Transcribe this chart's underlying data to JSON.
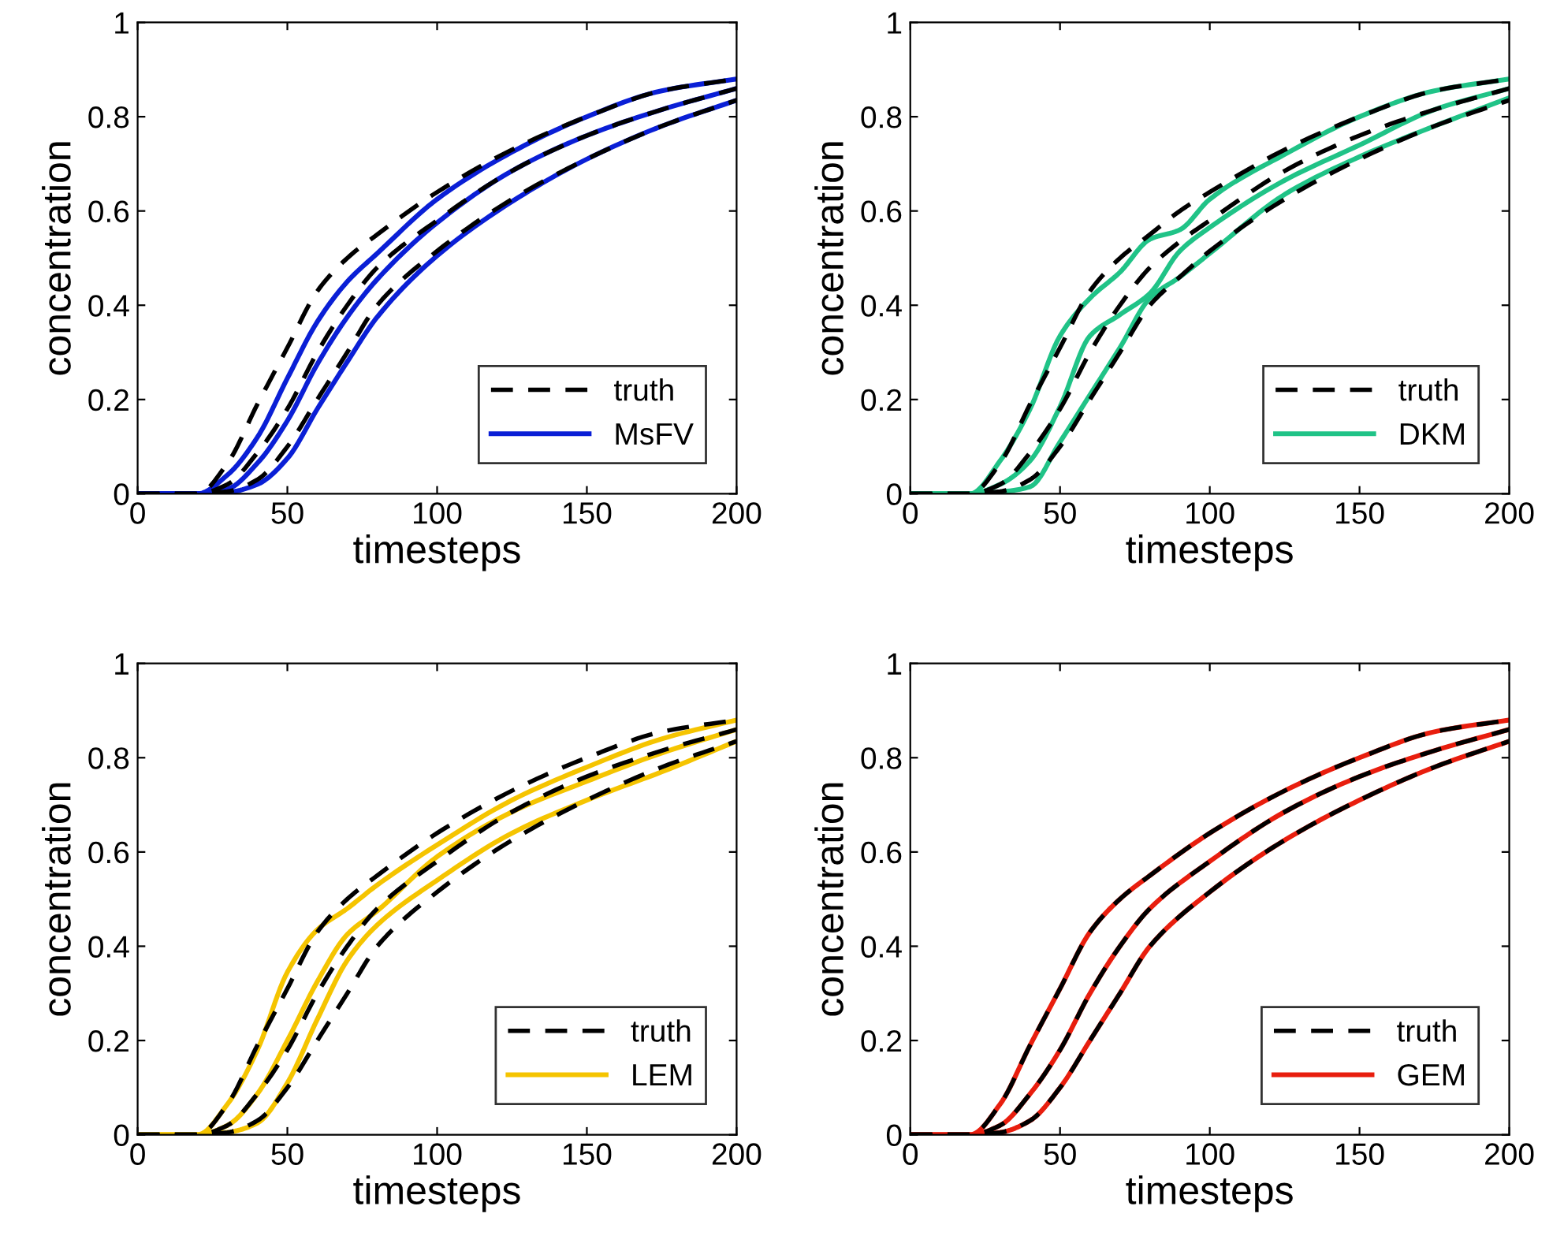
{
  "chart_data": [
    {
      "type": "line",
      "xlabel": "timesteps",
      "ylabel": "concentration",
      "xlim": [
        0,
        200
      ],
      "ylim": [
        0,
        1
      ],
      "xticks": [
        0,
        50,
        100,
        150,
        200
      ],
      "yticks": [
        0,
        0.2,
        0.4,
        0.6,
        0.8,
        1
      ],
      "grid": false,
      "legend": "bottom right",
      "x": [
        0,
        20,
        30,
        40,
        50,
        60,
        70,
        80,
        100,
        125,
        150,
        175,
        200
      ],
      "series": [
        {
          "name": "truth",
          "color": "#000000",
          "line_style": "dashed",
          "values": [
            0,
            0,
            0.065,
            0.19,
            0.31,
            0.43,
            0.5,
            0.55,
            0.64,
            0.73,
            0.8,
            0.855,
            0.88
          ]
        },
        {
          "color": "#000000",
          "line_style": "dashed",
          "values": [
            0,
            0,
            0.02,
            0.087,
            0.18,
            0.3,
            0.4,
            0.48,
            0.58,
            0.685,
            0.76,
            0.815,
            0.86
          ]
        },
        {
          "color": "#000000",
          "line_style": "dashed",
          "values": [
            0,
            0,
            0.005,
            0.03,
            0.1,
            0.2,
            0.3,
            0.4,
            0.515,
            0.625,
            0.71,
            0.78,
            0.835
          ]
        },
        {
          "name": "MsFV",
          "color": "#0a1fd6",
          "line_style": "solid",
          "values": [
            0,
            0,
            0.04,
            0.12,
            0.245,
            0.365,
            0.45,
            0.51,
            0.625,
            0.725,
            0.8,
            0.855,
            0.88
          ]
        },
        {
          "color": "#0a1fd6",
          "line_style": "solid",
          "values": [
            0,
            0,
            0.01,
            0.065,
            0.155,
            0.275,
            0.375,
            0.455,
            0.575,
            0.685,
            0.76,
            0.815,
            0.86
          ]
        },
        {
          "color": "#0a1fd6",
          "line_style": "solid",
          "values": [
            0,
            0,
            0.003,
            0.02,
            0.075,
            0.18,
            0.28,
            0.375,
            0.505,
            0.62,
            0.71,
            0.78,
            0.835
          ]
        }
      ]
    },
    {
      "type": "line",
      "xlabel": "timesteps",
      "ylabel": "concentration",
      "xlim": [
        0,
        200
      ],
      "ylim": [
        0,
        1
      ],
      "xticks": [
        0,
        50,
        100,
        150,
        200
      ],
      "yticks": [
        0,
        0.2,
        0.4,
        0.6,
        0.8,
        1
      ],
      "grid": false,
      "legend": "bottom right",
      "x": [
        0,
        20,
        30,
        40,
        50,
        60,
        70,
        80,
        90,
        100,
        125,
        150,
        175,
        200
      ],
      "series": [
        {
          "name": "truth",
          "color": "#000000",
          "line_style": "dashed",
          "values": [
            0,
            0,
            0.065,
            0.19,
            0.31,
            0.43,
            0.5,
            0.55,
            0.6,
            0.64,
            0.73,
            0.8,
            0.855,
            0.88
          ]
        },
        {
          "color": "#000000",
          "line_style": "dashed",
          "values": [
            0,
            0,
            0.02,
            0.087,
            0.18,
            0.3,
            0.4,
            0.48,
            0.535,
            0.58,
            0.685,
            0.76,
            0.815,
            0.86
          ]
        },
        {
          "color": "#000000",
          "line_style": "dashed",
          "values": [
            0,
            0,
            0.005,
            0.03,
            0.1,
            0.2,
            0.3,
            0.4,
            0.46,
            0.515,
            0.625,
            0.71,
            0.78,
            0.835
          ]
        },
        {
          "name": "DKM",
          "color": "#20c387",
          "line_style": "solid",
          "values": [
            0,
            0,
            0.07,
            0.18,
            0.335,
            0.415,
            0.47,
            0.54,
            0.56,
            0.625,
            0.72,
            0.8,
            0.855,
            0.88
          ]
        },
        {
          "color": "#20c387",
          "line_style": "solid",
          "values": [
            0,
            0,
            0.02,
            0.07,
            0.185,
            0.335,
            0.38,
            0.425,
            0.515,
            0.565,
            0.665,
            0.74,
            0.815,
            0.86
          ]
        },
        {
          "color": "#20c387",
          "line_style": "solid",
          "values": [
            0,
            0,
            0.004,
            0.015,
            0.11,
            0.21,
            0.31,
            0.415,
            0.46,
            0.51,
            0.635,
            0.715,
            0.78,
            0.84
          ]
        }
      ]
    },
    {
      "type": "line",
      "xlabel": "timesteps",
      "ylabel": "concentration",
      "xlim": [
        0,
        200
      ],
      "ylim": [
        0,
        1
      ],
      "xticks": [
        0,
        50,
        100,
        150,
        200
      ],
      "yticks": [
        0,
        0.2,
        0.4,
        0.6,
        0.8,
        1
      ],
      "grid": false,
      "legend": "bottom right",
      "x": [
        0,
        20,
        30,
        40,
        50,
        60,
        70,
        80,
        100,
        125,
        150,
        175,
        200
      ],
      "series": [
        {
          "name": "truth",
          "color": "#000000",
          "line_style": "dashed",
          "values": [
            0,
            0,
            0.065,
            0.19,
            0.31,
            0.43,
            0.5,
            0.55,
            0.64,
            0.73,
            0.8,
            0.855,
            0.88
          ]
        },
        {
          "color": "#000000",
          "line_style": "dashed",
          "values": [
            0,
            0,
            0.02,
            0.087,
            0.18,
            0.3,
            0.4,
            0.48,
            0.58,
            0.685,
            0.76,
            0.815,
            0.86
          ]
        },
        {
          "color": "#000000",
          "line_style": "dashed",
          "values": [
            0,
            0,
            0.005,
            0.03,
            0.1,
            0.2,
            0.3,
            0.4,
            0.515,
            0.625,
            0.71,
            0.78,
            0.835
          ]
        },
        {
          "name": "LEM",
          "color": "#f5c400",
          "line_style": "solid",
          "values": [
            0,
            0,
            0.065,
            0.18,
            0.345,
            0.435,
            0.48,
            0.53,
            0.615,
            0.71,
            0.78,
            0.84,
            0.88
          ]
        },
        {
          "color": "#f5c400",
          "line_style": "solid",
          "values": [
            0,
            0,
            0.02,
            0.087,
            0.2,
            0.325,
            0.425,
            0.475,
            0.59,
            0.685,
            0.75,
            0.81,
            0.86
          ]
        },
        {
          "color": "#f5c400",
          "line_style": "solid",
          "values": [
            0,
            0,
            0.005,
            0.025,
            0.11,
            0.245,
            0.37,
            0.445,
            0.54,
            0.64,
            0.71,
            0.77,
            0.835
          ]
        }
      ]
    },
    {
      "type": "line",
      "xlabel": "timesteps",
      "ylabel": "concentration",
      "xlim": [
        0,
        200
      ],
      "ylim": [
        0,
        1
      ],
      "xticks": [
        0,
        50,
        100,
        150,
        200
      ],
      "yticks": [
        0,
        0.2,
        0.4,
        0.6,
        0.8,
        1
      ],
      "grid": false,
      "legend": "bottom right",
      "x": [
        0,
        20,
        30,
        40,
        50,
        60,
        70,
        80,
        100,
        125,
        150,
        175,
        200
      ],
      "series": [
        {
          "name": "truth",
          "color": "#000000",
          "line_style": "dashed",
          "values": [
            0,
            0,
            0.065,
            0.19,
            0.31,
            0.43,
            0.5,
            0.55,
            0.64,
            0.73,
            0.8,
            0.855,
            0.88
          ]
        },
        {
          "color": "#000000",
          "line_style": "dashed",
          "values": [
            0,
            0,
            0.02,
            0.087,
            0.18,
            0.3,
            0.4,
            0.48,
            0.58,
            0.685,
            0.76,
            0.815,
            0.86
          ]
        },
        {
          "color": "#000000",
          "line_style": "dashed",
          "values": [
            0,
            0,
            0.005,
            0.03,
            0.1,
            0.2,
            0.3,
            0.4,
            0.515,
            0.625,
            0.71,
            0.78,
            0.835
          ]
        },
        {
          "name": "GEM",
          "color": "#e81e0e",
          "line_style": "solid",
          "values": [
            0,
            0,
            0.065,
            0.19,
            0.31,
            0.43,
            0.5,
            0.55,
            0.64,
            0.73,
            0.8,
            0.855,
            0.88
          ]
        },
        {
          "color": "#e81e0e",
          "line_style": "solid",
          "values": [
            0,
            0,
            0.02,
            0.087,
            0.18,
            0.3,
            0.4,
            0.48,
            0.58,
            0.685,
            0.76,
            0.815,
            0.86
          ]
        },
        {
          "color": "#e81e0e",
          "line_style": "solid",
          "values": [
            0,
            0,
            0.005,
            0.03,
            0.1,
            0.2,
            0.3,
            0.4,
            0.515,
            0.625,
            0.71,
            0.78,
            0.835
          ]
        }
      ]
    }
  ]
}
